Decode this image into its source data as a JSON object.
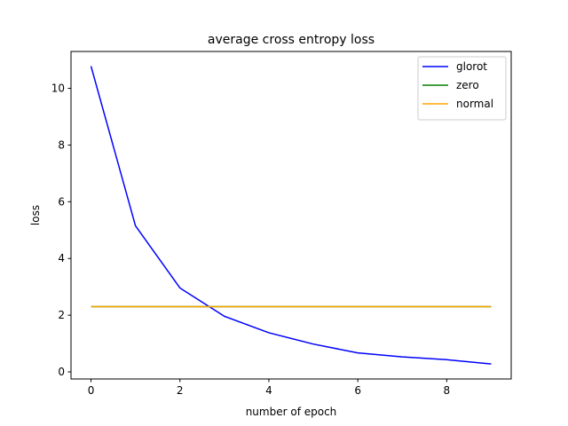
{
  "chart_data": {
    "type": "line",
    "title": "average cross entropy loss",
    "xlabel": "number of epoch",
    "ylabel": "loss",
    "xlim": [
      -0.45,
      9.45
    ],
    "ylim": [
      -0.25,
      11.3
    ],
    "xticks": [
      0,
      2,
      4,
      6,
      8
    ],
    "yticks": [
      0,
      2,
      4,
      6,
      8,
      10
    ],
    "grid": false,
    "legend_position": "top-right",
    "series": [
      {
        "name": "glorot",
        "color": "#0000ff",
        "x": [
          0,
          1,
          2,
          3,
          4,
          5,
          6,
          7,
          8,
          9
        ],
        "values": [
          10.78,
          5.15,
          2.96,
          1.96,
          1.38,
          0.98,
          0.67,
          0.53,
          0.43,
          0.28
        ]
      },
      {
        "name": "zero",
        "color": "#008000",
        "x": [
          0,
          1,
          2,
          3,
          4,
          5,
          6,
          7,
          8,
          9
        ],
        "values": [
          2.3026,
          2.3026,
          2.3026,
          2.3026,
          2.3026,
          2.3026,
          2.3026,
          2.3026,
          2.3026,
          2.3026
        ]
      },
      {
        "name": "normal",
        "color": "#ffa500",
        "x": [
          0,
          1,
          2,
          3,
          4,
          5,
          6,
          7,
          8,
          9
        ],
        "values": [
          2.3026,
          2.3026,
          2.3026,
          2.3026,
          2.3026,
          2.3026,
          2.3026,
          2.3026,
          2.3026,
          2.3026
        ]
      }
    ]
  }
}
